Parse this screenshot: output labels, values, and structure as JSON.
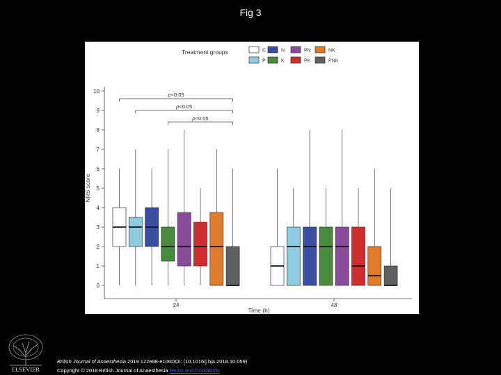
{
  "slide": {
    "title": "Fig 3"
  },
  "footer": {
    "citation_journal": "British Journal of Anaesthesia",
    "citation_rest": " 2019 122e98-e106DOI: (10.1016/j.bja.2018.10.059)",
    "copyright": "Copyright © 2018 British Journal of Anaesthesia",
    "link_text": "Terms and Conditions"
  },
  "logo": {
    "text": "ELSEVIER",
    "icon": "elsevier-tree-icon"
  },
  "chart_data": {
    "type": "box",
    "ylabel": "NRS score",
    "xlabel": "Time (h)",
    "ylim": [
      0,
      10.5
    ],
    "yticks": [
      0,
      1,
      2,
      3,
      4,
      5,
      6,
      7,
      8,
      9,
      10
    ],
    "legend": {
      "title": "Treatment groups",
      "placement": "top",
      "entries": [
        {
          "name": "C",
          "color": "#ffffff"
        },
        {
          "name": "N",
          "color": "#3a4fa1"
        },
        {
          "name": "PN",
          "color": "#8b4b9d"
        },
        {
          "name": "NK",
          "color": "#e07b2a"
        },
        {
          "name": "P",
          "color": "#8ecae0"
        },
        {
          "name": "K",
          "color": "#4a8a3c"
        },
        {
          "name": "PK",
          "color": "#cc2f2f"
        },
        {
          "name": "PNK",
          "color": "#606060"
        }
      ]
    },
    "time_points": [
      {
        "label": "24",
        "boxes": [
          {
            "group": "C",
            "min": 0,
            "q1": 2,
            "median": 3,
            "q3": 4,
            "max": 6
          },
          {
            "group": "P",
            "min": 0,
            "q1": 2,
            "median": 3,
            "q3": 3.5,
            "max": 7
          },
          {
            "group": "N",
            "min": 0,
            "q1": 2,
            "median": 3,
            "q3": 4,
            "max": 6
          },
          {
            "group": "K",
            "min": 0,
            "q1": 1.25,
            "median": 2,
            "q3": 3,
            "max": 7
          },
          {
            "group": "PN",
            "min": 0,
            "q1": 1,
            "median": 2,
            "q3": 3.75,
            "max": 8
          },
          {
            "group": "PK",
            "min": 0,
            "q1": 1,
            "median": 2,
            "q3": 3.25,
            "max": 5
          },
          {
            "group": "NK",
            "min": 0,
            "q1": 0,
            "median": 2,
            "q3": 3.75,
            "max": 7
          },
          {
            "group": "PNK",
            "min": 0,
            "q1": 0,
            "median": 0,
            "q3": 2,
            "max": 6
          }
        ]
      },
      {
        "label": "48",
        "boxes": [
          {
            "group": "C",
            "min": 0,
            "q1": 0,
            "median": 1,
            "q3": 2,
            "max": 6
          },
          {
            "group": "P",
            "min": 0,
            "q1": 0,
            "median": 2,
            "q3": 3,
            "max": 5
          },
          {
            "group": "N",
            "min": 0,
            "q1": 0,
            "median": 2,
            "q3": 3,
            "max": 8
          },
          {
            "group": "K",
            "min": 0,
            "q1": 0,
            "median": 2,
            "q3": 3,
            "max": 5
          },
          {
            "group": "PN",
            "min": 0,
            "q1": 0,
            "median": 2,
            "q3": 3,
            "max": 8
          },
          {
            "group": "PK",
            "min": 0,
            "q1": 0,
            "median": 1,
            "q3": 3,
            "max": 5
          },
          {
            "group": "NK",
            "min": 0,
            "q1": 0,
            "median": 0.5,
            "q3": 2,
            "max": 6
          },
          {
            "group": "PNK",
            "min": 0,
            "q1": 0,
            "median": 0,
            "q3": 1,
            "max": 5
          }
        ]
      }
    ],
    "annotations": [
      {
        "text": "p<0.05",
        "from": "C",
        "to": "PNK",
        "time": "24",
        "y": 9.6
      },
      {
        "text": "p<0.05",
        "from": "P",
        "to": "PNK",
        "time": "24",
        "y": 9.0
      },
      {
        "text": "p<0.05",
        "from": "K",
        "to": "PNK",
        "time": "24",
        "y": 8.4
      }
    ]
  }
}
